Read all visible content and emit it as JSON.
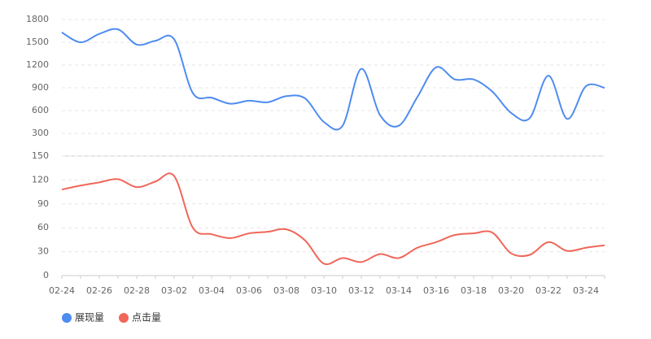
{
  "chart_data": [
    {
      "type": "line",
      "series": [
        {
          "name": "展现量",
          "color": "#4e8cf0",
          "values": [
            1630,
            1500,
            1610,
            1670,
            1470,
            1520,
            1540,
            830,
            770,
            690,
            730,
            710,
            790,
            760,
            450,
            400,
            1150,
            540,
            400,
            780,
            1170,
            1010,
            1010,
            850,
            570,
            500,
            1060,
            490,
            920,
            900
          ]
        }
      ],
      "ylim": [
        0,
        1800
      ],
      "yticks": [
        300,
        600,
        900,
        1200,
        1500,
        1800
      ],
      "grid": true
    },
    {
      "type": "line",
      "categories": [
        "02-24",
        null,
        "02-26",
        null,
        "02-28",
        null,
        "03-02",
        null,
        "03-04",
        null,
        "03-06",
        null,
        "03-08",
        null,
        "03-10",
        null,
        "03-12",
        null,
        "03-14",
        null,
        "03-16",
        null,
        "03-18",
        null,
        "03-20",
        null,
        "03-22",
        null,
        "03-24",
        null
      ],
      "series": [
        {
          "name": "点击量",
          "color": "#f0675a",
          "values": [
            108,
            113,
            117,
            121,
            111,
            118,
            125,
            60,
            52,
            47,
            53,
            55,
            58,
            44,
            15,
            22,
            17,
            27,
            22,
            35,
            42,
            51,
            53,
            54,
            28,
            26,
            42,
            31,
            35,
            38
          ]
        }
      ],
      "ylim": [
        0,
        150
      ],
      "yticks": [
        0,
        30,
        60,
        90,
        120,
        150
      ],
      "grid": true
    }
  ]
}
